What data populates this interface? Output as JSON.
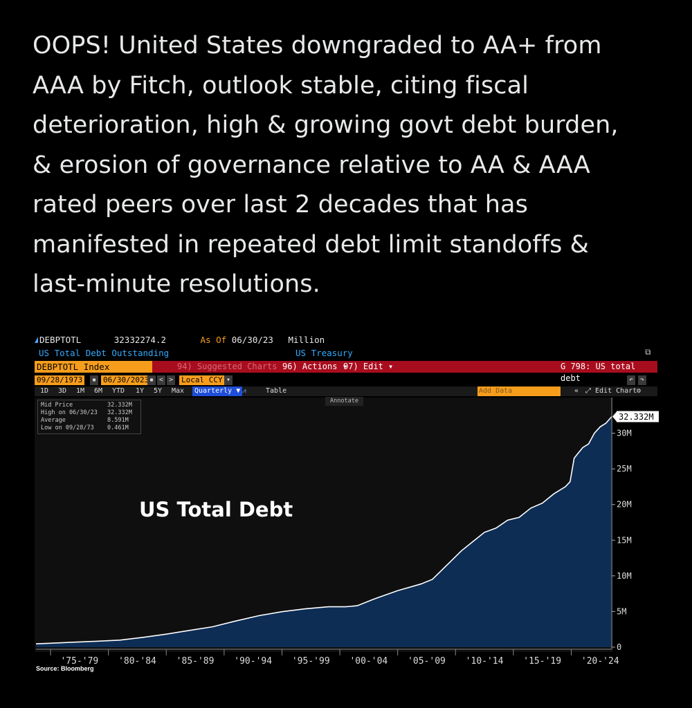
{
  "tweet": {
    "lines": [
      "OOPS! United States downgraded to AA+ from",
      "AAA by Fitch, outlook stable, citing fiscal",
      "deterioration, high & growing govt debt burden,",
      "& erosion of governance relative to AA & AAA",
      "rated peers over last 2 decades that has",
      "manifested in repeated debt limit standoffs &",
      "last-minute resolutions."
    ]
  },
  "terminal": {
    "ticker": "DEBPTOTL",
    "last_value": "32332274.2",
    "as_of_label": "As Of",
    "as_of_date": "06/30/23",
    "unit": "Million",
    "description": "US Total Debt Outstanding",
    "source_name": "US Treasury",
    "index_label": "DEBPTOTL Index",
    "suggested": "94) Suggested Charts",
    "actions": "96) Actions ▾",
    "edit": "97) Edit ▾",
    "function": "G 798: US total debt",
    "start_date": "09/28/1973",
    "end_date": "06/30/2023",
    "currency": "Local CCY",
    "periods": [
      "1D",
      "3D",
      "1M",
      "6M",
      "YTD",
      "1Y",
      "5Y",
      "Max"
    ],
    "frequency": "Quarterly ▼",
    "table": "Table",
    "add_data": "Add Data",
    "edit_chart": "⤢ Edit Chart",
    "annotate": "Annotate",
    "source": "Source: Bloomberg"
  },
  "legend": [
    {
      "label": "Mid Price",
      "value": "32.332M"
    },
    {
      "label": "High on 06/30/23",
      "value": "32.332M"
    },
    {
      "label": "Average",
      "value": "8.591M"
    },
    {
      "label": "Low on 09/28/73",
      "value": "0.461M"
    }
  ],
  "colors": {
    "fill": "#0d2d55",
    "line": "#ffffff",
    "bg": "#000000",
    "orange": "#f79d1c",
    "red": "#a80d1e"
  },
  "chart_data": {
    "type": "area",
    "title": "US Total Debt",
    "ylim": [
      0,
      32.332
    ],
    "yticks": [
      0,
      5,
      10,
      15,
      20,
      25,
      30
    ],
    "ytick_labels": [
      "0",
      "5M",
      "10M",
      "15M",
      "20M",
      "25M",
      "30M"
    ],
    "last_label": "32.332M",
    "xrange": [
      1973.74,
      2023.5
    ],
    "xtick_labels": [
      "'75-'79",
      "'80-'84",
      "'85-'89",
      "'90-'94",
      "'95-'99",
      "'00-'04",
      "'05-'09",
      "'10-'14",
      "'15-'19",
      "'20-'24"
    ],
    "xtick_centers": [
      1977.5,
      1982.5,
      1987.5,
      1992.5,
      1997.5,
      2002.5,
      2007.5,
      2012.5,
      2017.5,
      2022.5
    ],
    "x": [
      1973.74,
      1975,
      1977,
      1979,
      1981,
      1983,
      1985,
      1987,
      1989,
      1991,
      1993,
      1995,
      1997,
      1999,
      2000.5,
      2001.5,
      2003,
      2005,
      2007,
      2008,
      2008.75,
      2009.5,
      2010.5,
      2011.5,
      2012.5,
      2013.5,
      2014.5,
      2015.5,
      2016.5,
      2017.5,
      2018.5,
      2019.5,
      2019.9,
      2020.25,
      2020.5,
      2021,
      2021.5,
      2022,
      2022.5,
      2023,
      2023.5
    ],
    "y": [
      0.461,
      0.55,
      0.7,
      0.83,
      0.99,
      1.38,
      1.82,
      2.35,
      2.86,
      3.66,
      4.41,
      4.97,
      5.37,
      5.66,
      5.66,
      5.81,
      6.78,
      7.93,
      8.85,
      9.5,
      10.7,
      11.9,
      13.5,
      14.8,
      16.1,
      16.7,
      17.8,
      18.2,
      19.5,
      20.2,
      21.5,
      22.5,
      23.2,
      26.5,
      27.0,
      28.0,
      28.5,
      30.0,
      30.9,
      31.4,
      32.332
    ]
  }
}
